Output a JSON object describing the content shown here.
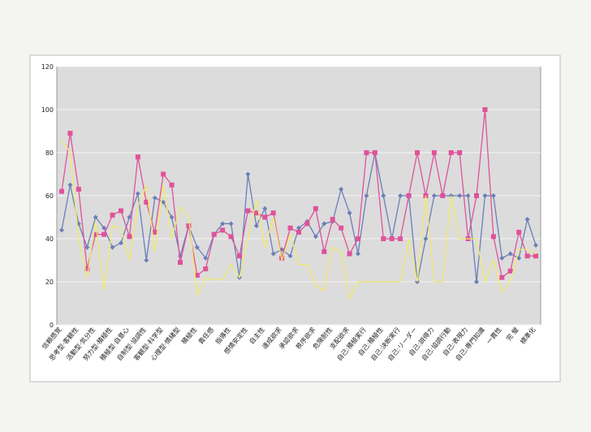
{
  "chart_data": {
    "type": "line",
    "categories": [
      "信頼感覚",
      null,
      "思考型·客観性",
      null,
      "活動型·気分性",
      null,
      "努力型·積極性",
      null,
      "積極型·自意心",
      null,
      "自制型·協調性",
      null,
      "客観型·科学型",
      null,
      "心理型·情緒型",
      null,
      "積極性",
      null,
      "責任感",
      null,
      "指導性",
      null,
      "感情安定性",
      null,
      "自主性",
      null,
      "達成欲求",
      null,
      "承認欲求",
      null,
      "秩序欲求",
      null,
      "危険耐性",
      null,
      "支配欲求",
      null,
      "自己:積極実行",
      null,
      "自己:積極性",
      null,
      "自己:決断実行",
      null,
      "自己:リーダー",
      null,
      "自己:説得力",
      null,
      "自己:協調行動",
      null,
      "自己:表現力",
      null,
      "自己:専門知識",
      null,
      "一貫性",
      null,
      "完 璧",
      null,
      "標準化"
    ],
    "series": [
      {
        "color": "#6b7fb8",
        "marker": "diamond",
        "values": [
          44,
          65,
          47,
          36,
          50,
          45,
          36,
          38,
          50,
          61,
          30,
          59,
          57,
          50,
          32,
          46,
          36,
          31,
          42,
          47,
          47,
          22,
          70,
          46,
          54,
          33,
          35,
          32,
          45,
          48,
          41,
          47,
          48,
          63,
          52,
          33,
          60,
          80,
          60,
          40,
          60,
          60,
          20,
          40,
          60,
          60,
          60,
          60,
          60,
          20,
          60,
          60,
          31,
          33,
          31,
          49,
          37
        ]
      },
      {
        "color": "#e0529a",
        "marker": "square",
        "values": [
          62,
          89,
          63,
          26,
          42,
          42,
          51,
          53,
          41,
          78,
          57,
          43,
          70,
          65,
          29,
          46,
          23,
          26,
          42,
          44,
          41,
          32,
          53,
          52,
          50,
          52,
          31,
          45,
          43,
          47,
          54,
          34,
          49,
          45,
          33,
          40,
          80,
          80,
          40,
          40,
          40,
          60,
          80,
          60,
          80,
          60,
          80,
          80,
          40,
          60,
          100,
          41,
          22,
          25,
          43,
          32,
          32
        ]
      },
      {
        "color": "#f2ea6a",
        "marker": "none",
        "values": [
          86,
          80,
          40,
          22,
          48,
          16,
          46,
          45,
          30,
          55,
          65,
          34,
          65,
          40,
          55,
          50,
          14,
          22,
          21,
          21,
          28,
          22,
          40,
          58,
          36,
          50,
          30,
          42,
          28,
          28,
          18,
          16,
          36,
          34,
          12,
          20,
          20,
          20,
          20,
          20,
          20,
          40,
          20,
          60,
          20,
          20,
          60,
          40,
          40,
          40,
          20,
          30,
          15,
          20,
          35,
          35,
          33
        ]
      }
    ],
    "ylim": [
      0,
      120
    ],
    "yticks": [
      0,
      20,
      40,
      60,
      80,
      100,
      120
    ],
    "grid": true
  }
}
